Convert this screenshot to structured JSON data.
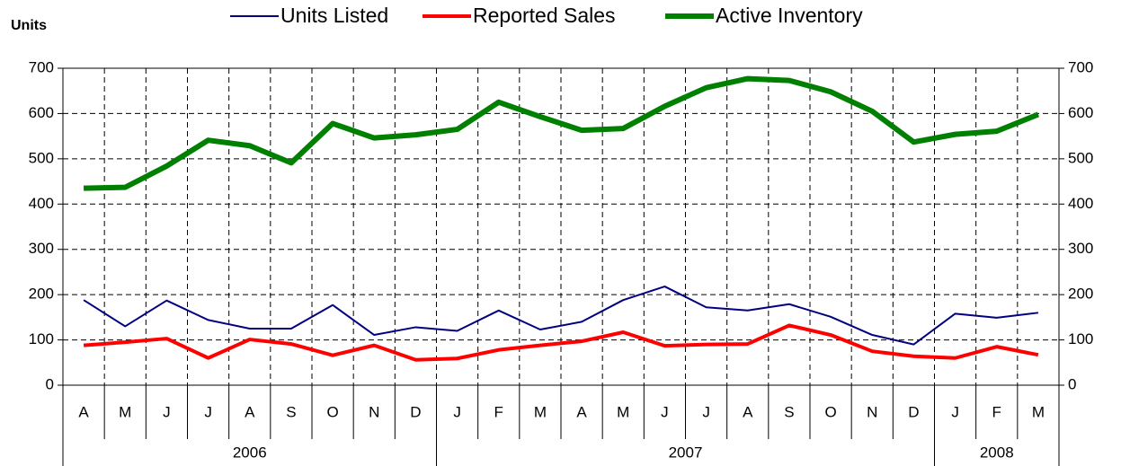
{
  "chart_data": {
    "type": "line",
    "y_label": "Units",
    "categories": [
      "A",
      "M",
      "J",
      "J",
      "A",
      "S",
      "O",
      "N",
      "D",
      "J",
      "F",
      "M",
      "A",
      "M",
      "J",
      "J",
      "A",
      "S",
      "O",
      "N",
      "D",
      "J",
      "F",
      "M"
    ],
    "x_groups": [
      {
        "label": "2006",
        "count": 9
      },
      {
        "label": "2007",
        "count": 12
      },
      {
        "label": "2008",
        "count": 3
      }
    ],
    "series": [
      {
        "name": "Units Listed",
        "color": "#000080",
        "width": 2,
        "values": [
          188,
          130,
          187,
          144,
          125,
          125,
          177,
          111,
          128,
          120,
          165,
          123,
          140,
          188,
          218,
          172,
          165,
          179,
          151,
          111,
          90,
          158,
          149,
          160
        ]
      },
      {
        "name": "Reported Sales",
        "color": "#ff0000",
        "width": 4,
        "values": [
          88,
          95,
          103,
          60,
          101,
          91,
          66,
          88,
          56,
          59,
          78,
          88,
          97,
          117,
          87,
          90,
          91,
          132,
          111,
          75,
          64,
          60,
          85,
          67
        ]
      },
      {
        "name": "Active Inventory",
        "color": "#008000",
        "width": 6,
        "values": [
          435,
          437,
          484,
          541,
          529,
          491,
          578,
          546,
          553,
          565,
          625,
          593,
          563,
          567,
          616,
          657,
          677,
          673,
          648,
          605,
          537,
          554,
          561,
          598
        ]
      }
    ],
    "ylim": [
      0,
      700
    ],
    "yticks": [
      0,
      100,
      200,
      300,
      400,
      500,
      600,
      700
    ],
    "y2lim": [
      0,
      700
    ],
    "y2ticks": [
      0,
      100,
      200,
      300,
      400,
      500,
      600,
      700
    ],
    "grid": true,
    "legend": "top"
  }
}
